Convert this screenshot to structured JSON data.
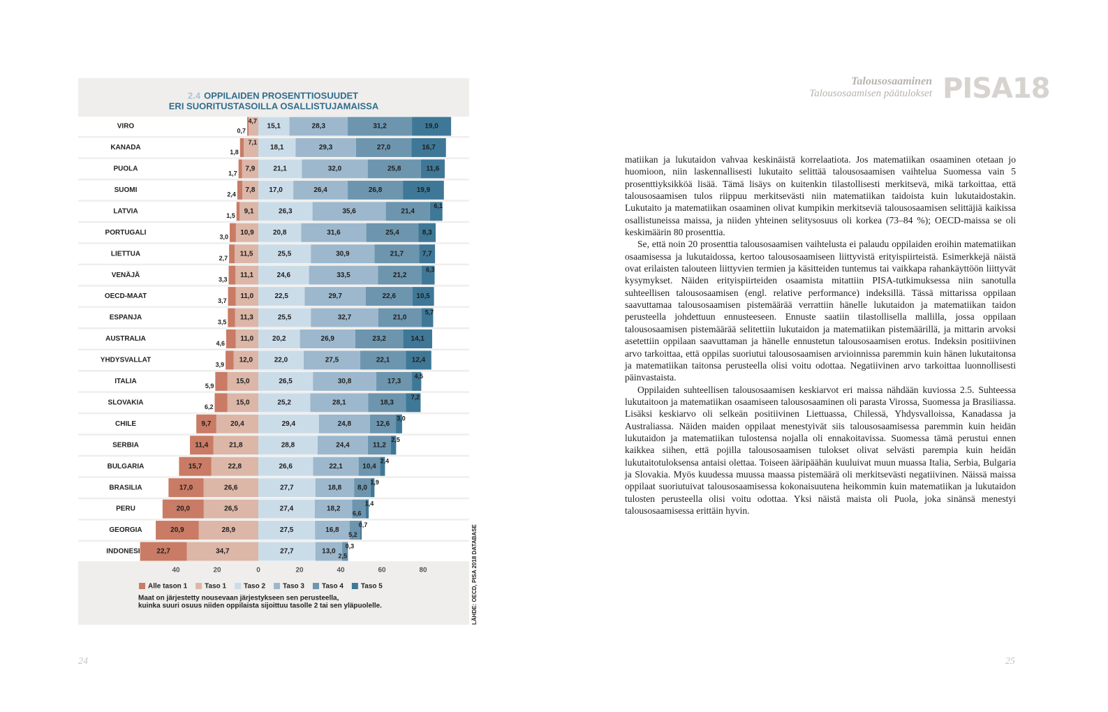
{
  "chart_data": {
    "type": "diverging-bar",
    "figure_number": "2.4",
    "title": [
      "OPPILAIDEN PROSENTTIOSUUDET",
      "ERI SUORITUSTASOILLA OSALLISTUJAMAISSA"
    ],
    "categories": [
      "VIRO",
      "KANADA",
      "PUOLA",
      "SUOMI",
      "LATVIA",
      "PORTUGALI",
      "LIETTUA",
      "VENÄJÄ",
      "OECD-MAAT",
      "ESPANJA",
      "AUSTRALIA",
      "YHDYSVALLAT",
      "ITALIA",
      "SLOVAKIA",
      "CHILE",
      "SERBIA",
      "BULGARIA",
      "BRASILIA",
      "PERU",
      "GEORGIA",
      "INDONESIA"
    ],
    "series": [
      {
        "name": "Alle tason 1",
        "color": "#c97b65",
        "values": [
          -0.7,
          -1.8,
          -1.7,
          -2.4,
          -1.5,
          -3.0,
          -2.7,
          -3.3,
          -3.7,
          -3.5,
          -4.6,
          -3.9,
          -5.9,
          -6.2,
          -9.7,
          -11.4,
          -15.7,
          -17.0,
          -20.0,
          -20.9,
          -22.7
        ],
        "value_labels": [
          "0,7",
          "1,8",
          "1,7",
          "2,4",
          "1,5",
          "3,0",
          "2,7",
          "3,3",
          "3,7",
          "3,5",
          "4,6",
          "3,9",
          "5,9",
          "6,2",
          "9,7",
          "11,4",
          "15,7",
          "17,0",
          "20,0",
          "20,9",
          "22,7"
        ]
      },
      {
        "name": "Taso 1",
        "color": "#dcb6a7",
        "values": [
          -4.7,
          -7.1,
          -7.9,
          -7.8,
          -9.1,
          -10.9,
          -11.5,
          -11.1,
          -11.0,
          -11.3,
          -11.0,
          -12.0,
          -15.0,
          -15.0,
          -20.4,
          -21.8,
          -22.8,
          -26.6,
          -26.5,
          -28.9,
          -34.7
        ],
        "value_labels": [
          "4,7",
          "7,1",
          "7,9",
          "7,8",
          "9,1",
          "10,9",
          "11,5",
          "11,1",
          "11,0",
          "11,3",
          "11,0",
          "12,0",
          "15,0",
          "15,0",
          "20,4",
          "21,8",
          "22,8",
          "26,6",
          "26,5",
          "28,9",
          "34,7"
        ]
      },
      {
        "name": "Taso 2",
        "color": "#cbdce9",
        "values": [
          15.1,
          18.1,
          21.1,
          17.0,
          26.3,
          20.8,
          25.5,
          24.6,
          22.5,
          25.5,
          20.2,
          22.0,
          26.5,
          25.2,
          29.4,
          28.8,
          26.6,
          27.7,
          27.4,
          27.5,
          27.7
        ],
        "value_labels": [
          "15,1",
          "18,1",
          "21,1",
          "17,0",
          "26,3",
          "20,8",
          "25,5",
          "24,6",
          "22,5",
          "25,5",
          "20,2",
          "22,0",
          "26,5",
          "25,2",
          "29,4",
          "28,8",
          "26,6",
          "27,7",
          "27,4",
          "27,5",
          "27,7"
        ]
      },
      {
        "name": "Taso 3",
        "color": "#9db8cd",
        "values": [
          28.3,
          29.3,
          32.0,
          26.4,
          35.6,
          31.6,
          30.9,
          33.5,
          29.7,
          32.7,
          26.9,
          27.5,
          30.8,
          28.1,
          24.8,
          24.4,
          22.1,
          18.8,
          18.2,
          16.8,
          13.0
        ],
        "value_labels": [
          "28,3",
          "29,3",
          "32,0",
          "26,4",
          "35,6",
          "31,6",
          "30,9",
          "33,5",
          "29,7",
          "32,7",
          "26,9",
          "27,5",
          "30,8",
          "28,1",
          "24,8",
          "24,4",
          "22,1",
          "18,8",
          "18,2",
          "16,8",
          "13,0"
        ]
      },
      {
        "name": "Taso 4",
        "color": "#6d95ae",
        "values": [
          31.2,
          27.0,
          25.8,
          26.8,
          21.4,
          25.4,
          21.7,
          21.2,
          22.6,
          21.0,
          23.2,
          22.1,
          17.3,
          18.3,
          12.6,
          11.2,
          10.4,
          8.0,
          6.6,
          5.2,
          2.5
        ],
        "value_labels": [
          "31,2",
          "27,0",
          "25,8",
          "26,8",
          "21,4",
          "25,4",
          "21,7",
          "21,2",
          "22,6",
          "21,0",
          "23,2",
          "22,1",
          "17,3",
          "18,3",
          "12,6",
          "11,2",
          "10,4",
          "8,0",
          "6,6",
          "5,2",
          "2,5"
        ]
      },
      {
        "name": "Taso 5",
        "color": "#3f7897",
        "values": [
          19.0,
          16.7,
          11.6,
          19.9,
          6.1,
          8.3,
          7.7,
          6.3,
          10.5,
          5.7,
          14.1,
          12.4,
          4.5,
          7.2,
          3.0,
          2.5,
          2.4,
          1.9,
          1.4,
          0.7,
          0.3
        ],
        "value_labels": [
          "19,0",
          "16,7",
          "11,6",
          "19,9",
          "6,1",
          "8,3",
          "7,7",
          "6,3",
          "10,5",
          "5,7",
          "14,1",
          "12,4",
          "4,5",
          "7,2",
          "3,0",
          "2,5",
          "2,4",
          "1,9",
          "1,4",
          "0,7",
          "0,3"
        ]
      }
    ],
    "xlim": [
      -60,
      100
    ],
    "xticks": [
      {
        "value": -40,
        "label": "40"
      },
      {
        "value": -20,
        "label": "20"
      },
      0,
      20,
      40,
      60,
      80
    ],
    "note": [
      "Maat on järjestetty nousevaan järjestykseen sen perusteella,",
      "kuinka suuri osuus niiden oppilaista sijoittuu tasolle 2 tai sen yläpuolelle."
    ],
    "source": "LÄHDE: OECD, PISA 2018 DATABASE"
  },
  "header": {
    "title": "Talousosaaminen",
    "subtitle": "Talousosaamisen päätulokset",
    "logo": "PISA18"
  },
  "body": {
    "paragraphs": [
      "matiikan ja lukutaidon vahvaa keskinäistä korrelaatiota. Jos matematiikan osaaminen otetaan jo huomioon, niin laskennallisesti lukutaito selittää talousosaamisen vaihtelua Suomessa vain 5 prosenttiyksikköä lisää. Tämä lisäys on kuitenkin tilastollisesti merkitsevä, mikä tarkoittaa, että talousosaamisen tulos riippuu merkitsevästi niin matematiikan taidoista kuin lukutaidostakin. Lukutaito ja matematiikan osaaminen olivat kumpikin merkitseviä talousosaamisen selittäjiä kaikissa osallistuneissa maissa, ja niiden yhteinen selitysosuus oli korkea (73–84 %); OECD-maissa se oli keskimäärin 80 prosenttia.",
      "Se, että noin 20 prosenttia talousosaamisen vaihtelusta ei palaudu oppilaiden eroihin matematiikan osaamisessa ja lukutaidossa, kertoo talousosaamiseen liittyvistä erityispiirteistä. Esimerkkejä näistä ovat erilaisten talouteen liittyvien termien ja käsitteiden tuntemus tai vaikkapa rahankäyttöön liittyvät kysymykset. Näiden erityispiirteiden osaamista mitattiin PISA-tutkimuksessa niin sanotulla suhteellisen talousosaamisen (engl. relative performance) indeksillä. Tässä mittarissa oppilaan saavuttamaa talousosaamisen pistemäärää verrattiin hänelle lukutaidon ja matematiikan taidon perusteella johdettuun ennusteeseen. Ennuste saatiin tilastollisella mallilla, jossa oppilaan talousosaamisen pistemäärää selitettiin lukutaidon ja matematiikan pistemäärillä, ja mittarin arvoksi asetettiin oppilaan saavuttaman ja hänelle ennustetun talousosaamisen erotus. Indeksin positiivinen arvo tarkoittaa, että oppilas suoriutui talousosaamisen arvioinnissa paremmin kuin hänen lukutaitonsa ja matematiikan taitonsa perusteella olisi voitu odottaa. Negatiivinen arvo tarkoittaa luonnollisesti päinvastaista.",
      "Oppilaiden suhteellisen talousosaamisen keskiarvot eri maissa nähdään kuviossa 2.5. Suhteessa lukutaitoon ja matematiikan osaamiseen talousosaaminen oli parasta Virossa, Suomessa ja Brasiliassa. Lisäksi keskiarvo oli selkeän positiivinen Liettuassa, Chilessä, Yhdysvalloissa, Kanadassa ja Australiassa. Näiden maiden oppilaat menestyivät siis talousosaamisessa paremmin kuin heidän lukutaidon ja matematiikan tulostensa nojalla oli ennakoitavissa. Suomessa tämä perustui ennen kaikkea siihen, että pojilla talousosaamisen tulokset olivat selvästi parempia kuin heidän lukutaitotuloksensa antaisi olettaa. Toiseen ääripäähän kuuluivat muun muassa Italia, Serbia, Bulgaria ja Slovakia. Myös kuudessa muussa maassa pistemäärä oli merkitsevästi negatiivinen. Näissä maissa oppilaat suoriutuivat talousosaamisessa kokonaisuutena heikommin kuin matematiikan ja lukutaidon tulosten perusteella olisi voitu odottaa. Yksi näistä maista oli Puola, joka sinänsä menestyi talousosaamisessa erittäin hyvin."
    ]
  },
  "pages": {
    "left": "24",
    "right": "25"
  }
}
